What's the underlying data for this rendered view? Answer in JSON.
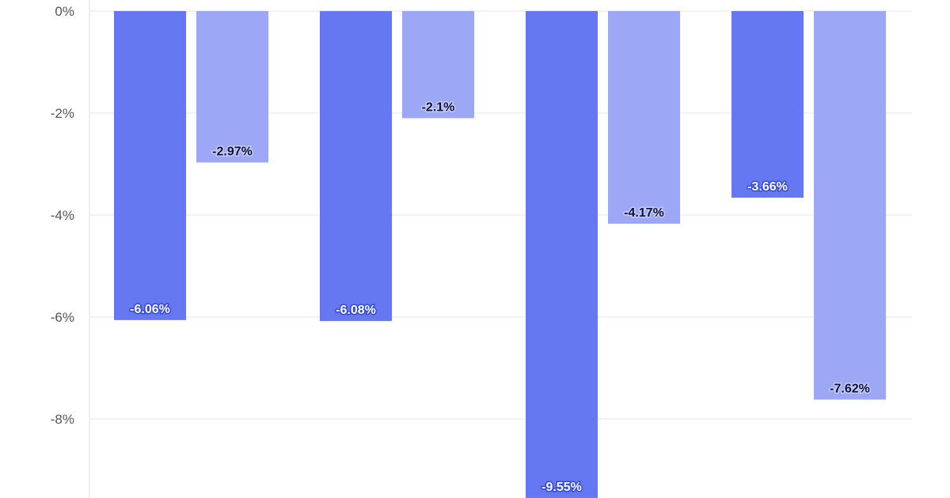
{
  "chart_data": {
    "type": "bar",
    "categories": [
      "",
      "",
      "",
      ""
    ],
    "series": [
      {
        "values": [
          -6.06,
          -6.08,
          -9.55,
          -3.66
        ],
        "color": "#6677f2"
      },
      {
        "values": [
          -2.97,
          -2.1,
          -4.17,
          -7.62
        ],
        "color": "#9ca8f6"
      }
    ],
    "data_labels": [
      [
        "-6.06%",
        "-6.08%",
        "-9.55%",
        "-3.66%"
      ],
      [
        "-2.97%",
        "-2.1%",
        "-4.17%",
        "-7.62%"
      ]
    ],
    "y_ticks": [
      0,
      -2,
      -4,
      -6,
      -8
    ],
    "y_tick_labels": [
      "0%",
      "-2%",
      "-4%",
      "-6%",
      "-8%"
    ],
    "ylim": [
      -9.55,
      0
    ],
    "grid": true,
    "legend": "none",
    "label_colors": {
      "series_0_text": "#ffffff",
      "series_0_halo": "#3448d8",
      "series_1_text": "#111133",
      "series_1_halo": "#c7cefb"
    }
  }
}
